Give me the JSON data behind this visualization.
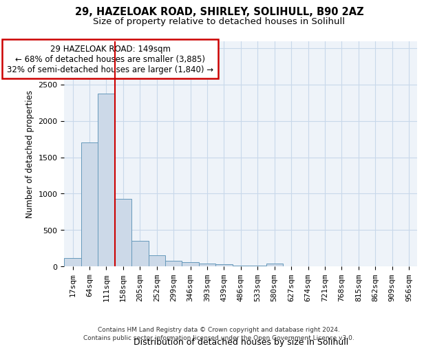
{
  "title1": "29, HAZELOAK ROAD, SHIRLEY, SOLIHULL, B90 2AZ",
  "title2": "Size of property relative to detached houses in Solihull",
  "xlabel": "Distribution of detached houses by size in Solihull",
  "ylabel": "Number of detached properties",
  "footer1": "Contains HM Land Registry data © Crown copyright and database right 2024.",
  "footer2": "Contains public sector information licensed under the Open Government Licence v3.0.",
  "bin_labels": [
    "17sqm",
    "64sqm",
    "111sqm",
    "158sqm",
    "205sqm",
    "252sqm",
    "299sqm",
    "346sqm",
    "393sqm",
    "439sqm",
    "486sqm",
    "533sqm",
    "580sqm",
    "627sqm",
    "674sqm",
    "721sqm",
    "768sqm",
    "815sqm",
    "862sqm",
    "909sqm",
    "956sqm"
  ],
  "bar_values": [
    110,
    1700,
    2380,
    930,
    350,
    155,
    80,
    55,
    35,
    25,
    10,
    5,
    35,
    0,
    0,
    0,
    0,
    0,
    0,
    0,
    0
  ],
  "bar_color": "#ccd9e8",
  "bar_edge_color": "#6699bb",
  "bar_linewidth": 0.7,
  "property_line_x": 2.5,
  "property_line_color": "#cc0000",
  "annotation_text": "29 HAZELOAK ROAD: 149sqm\n← 68% of detached houses are smaller (3,885)\n32% of semi-detached houses are larger (1,840) →",
  "annotation_box_color": "#cc0000",
  "ylim": [
    0,
    3100
  ],
  "yticks": [
    0,
    500,
    1000,
    1500,
    2000,
    2500,
    3000
  ],
  "grid_color": "#c8d8ea",
  "background_color": "#eef3f9",
  "title1_fontsize": 10.5,
  "title2_fontsize": 9.5,
  "xlabel_fontsize": 9,
  "ylabel_fontsize": 8.5,
  "tick_fontsize": 8,
  "footer_fontsize": 6.5,
  "ann_fontsize": 8.5
}
